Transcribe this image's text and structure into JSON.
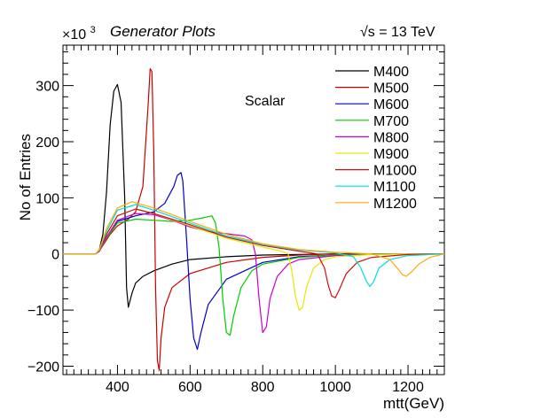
{
  "chart_data": {
    "type": "line",
    "title": "Generator Plots",
    "energy_label": "√s = 13 TeV",
    "annotation": "Scalar",
    "xlabel": "mtt(GeV)",
    "ylabel": "No of Entries",
    "y_multiplier": "×10",
    "y_multiplier_exp": "3",
    "xlim": [
      250,
      1300
    ],
    "ylim": [
      -215,
      372
    ],
    "x_ticks": [
      400,
      600,
      800,
      1000,
      1200
    ],
    "y_ticks": [
      -200,
      -100,
      0,
      100,
      200,
      300
    ],
    "legend_position": "top-right",
    "series": [
      {
        "name": "M400",
        "color": "#000000",
        "x": [
          250,
          340,
          350,
          360,
          370,
          380,
          390,
          400,
          410,
          420,
          425,
          430,
          440,
          450,
          470,
          500,
          550,
          600,
          700,
          800,
          900,
          1000,
          1100,
          1200,
          1300
        ],
        "y": [
          0,
          0,
          8,
          35,
          110,
          230,
          290,
          302,
          270,
          100,
          -60,
          -95,
          -70,
          -52,
          -40,
          -30,
          -18,
          -10,
          -5,
          -2,
          -1,
          0,
          0,
          0,
          0
        ]
      },
      {
        "name": "M500",
        "color": "#cc0000",
        "x": [
          250,
          340,
          350,
          360,
          380,
          400,
          430,
          450,
          470,
          485,
          490,
          495,
          500,
          505,
          510,
          515,
          520,
          530,
          550,
          600,
          700,
          800,
          900,
          1000,
          1100,
          1200,
          1300
        ],
        "y": [
          0,
          0,
          5,
          15,
          35,
          50,
          62,
          75,
          120,
          270,
          330,
          325,
          180,
          -60,
          -190,
          -208,
          -150,
          -95,
          -60,
          -35,
          -15,
          -6,
          -2,
          0,
          0,
          0,
          0
        ]
      },
      {
        "name": "M600",
        "color": "#0000cc",
        "x": [
          250,
          340,
          350,
          370,
          400,
          450,
          500,
          530,
          555,
          565,
          575,
          580,
          590,
          600,
          610,
          620,
          630,
          650,
          700,
          800,
          900,
          1000,
          1100,
          1200,
          1300
        ],
        "y": [
          0,
          0,
          5,
          30,
          58,
          68,
          75,
          90,
          120,
          140,
          145,
          130,
          30,
          -80,
          -150,
          -170,
          -140,
          -90,
          -45,
          -15,
          -5,
          -2,
          0,
          0,
          0
        ]
      },
      {
        "name": "M700",
        "color": "#00cc00",
        "x": [
          250,
          340,
          350,
          370,
          400,
          450,
          500,
          550,
          600,
          640,
          660,
          670,
          680,
          690,
          700,
          710,
          720,
          740,
          770,
          800,
          900,
          1000,
          1100,
          1200,
          1300
        ],
        "y": [
          0,
          0,
          5,
          28,
          55,
          62,
          60,
          58,
          60,
          65,
          68,
          55,
          10,
          -80,
          -140,
          -145,
          -110,
          -60,
          -30,
          -18,
          -6,
          -2,
          0,
          0,
          0
        ]
      },
      {
        "name": "M800",
        "color": "#cc00cc",
        "x": [
          250,
          340,
          350,
          370,
          400,
          450,
          500,
          550,
          600,
          650,
          700,
          750,
          770,
          780,
          790,
          800,
          810,
          820,
          840,
          870,
          900,
          1000,
          1100,
          1200,
          1300
        ],
        "y": [
          0,
          0,
          5,
          30,
          60,
          72,
          70,
          60,
          48,
          40,
          36,
          32,
          25,
          0,
          -80,
          -140,
          -130,
          -80,
          -40,
          -18,
          -10,
          -3,
          -1,
          0,
          0
        ]
      },
      {
        "name": "M900",
        "color": "#e6e600",
        "x": [
          250,
          340,
          350,
          370,
          400,
          450,
          500,
          600,
          700,
          800,
          850,
          870,
          880,
          890,
          900,
          910,
          920,
          940,
          970,
          1000,
          1100,
          1200,
          1300
        ],
        "y": [
          0,
          0,
          6,
          35,
          68,
          80,
          72,
          50,
          28,
          12,
          5,
          0,
          -30,
          -75,
          -100,
          -95,
          -60,
          -25,
          -10,
          -5,
          -1,
          0,
          0
        ]
      },
      {
        "name": "M1000",
        "color": "#cc1010",
        "x": [
          250,
          340,
          350,
          370,
          400,
          450,
          500,
          600,
          700,
          800,
          900,
          950,
          970,
          980,
          990,
          1000,
          1010,
          1030,
          1060,
          1100,
          1200,
          1300
        ],
        "y": [
          0,
          0,
          6,
          35,
          68,
          80,
          72,
          52,
          30,
          15,
          5,
          0,
          -25,
          -55,
          -75,
          -78,
          -65,
          -35,
          -15,
          -6,
          -1,
          0
        ]
      },
      {
        "name": "M1100",
        "color": "#00dddd",
        "x": [
          250,
          340,
          350,
          370,
          400,
          450,
          500,
          600,
          700,
          800,
          900,
          1000,
          1050,
          1070,
          1085,
          1095,
          1105,
          1120,
          1150,
          1200,
          1300
        ],
        "y": [
          0,
          0,
          7,
          40,
          78,
          88,
          78,
          55,
          32,
          17,
          7,
          2,
          -5,
          -25,
          -48,
          -58,
          -50,
          -25,
          -10,
          -3,
          0
        ]
      },
      {
        "name": "M1200",
        "color": "#ffaa00",
        "x": [
          250,
          340,
          350,
          370,
          400,
          440,
          500,
          600,
          700,
          800,
          900,
          1000,
          1100,
          1150,
          1170,
          1185,
          1195,
          1210,
          1230,
          1260,
          1300
        ],
        "y": [
          0,
          0,
          8,
          45,
          82,
          93,
          82,
          58,
          35,
          18,
          8,
          3,
          0,
          -10,
          -25,
          -37,
          -40,
          -32,
          -18,
          -6,
          0
        ]
      }
    ]
  }
}
